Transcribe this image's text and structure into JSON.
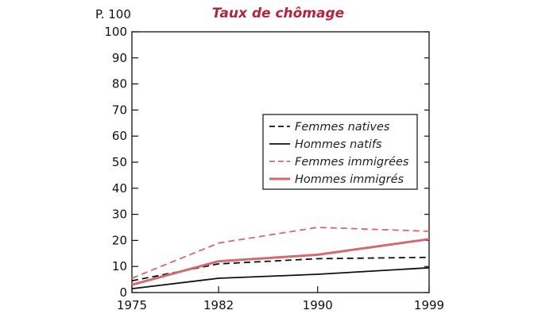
{
  "colors": {
    "title": "#b0263e",
    "native": "#111111",
    "immigrant": "#cf6b72",
    "axis": "#111111",
    "legend_text_native": "#222222",
    "legend_text_immigrant": "#222222"
  },
  "chart_data": {
    "type": "line",
    "title": "Taux de chômage",
    "unit_label": "P. 100",
    "xlabel": "",
    "ylabel": "",
    "x": [
      1975,
      1982,
      1990,
      1999
    ],
    "xlim": [
      1975,
      1999
    ],
    "ylim": [
      0,
      100
    ],
    "yticks": [
      0,
      10,
      20,
      30,
      40,
      50,
      60,
      70,
      80,
      90,
      100
    ],
    "grid": false,
    "legend_position": "center-right",
    "series": [
      {
        "name": "Femmes natives",
        "values": [
          4.5,
          11,
          13,
          13.5
        ],
        "color_key": "native",
        "dashed": true,
        "thick": false
      },
      {
        "name": "Hommes natifs",
        "values": [
          1.5,
          5.5,
          7,
          9.5
        ],
        "color_key": "native",
        "dashed": false,
        "thick": false
      },
      {
        "name": "Femmes immigrées",
        "values": [
          5.5,
          19,
          25,
          23.5
        ],
        "color_key": "immigrant",
        "dashed": true,
        "thick": false
      },
      {
        "name": "Hommes immigrés",
        "values": [
          3,
          12,
          14.5,
          20.5
        ],
        "color_key": "immigrant",
        "dashed": false,
        "thick": true
      }
    ]
  }
}
